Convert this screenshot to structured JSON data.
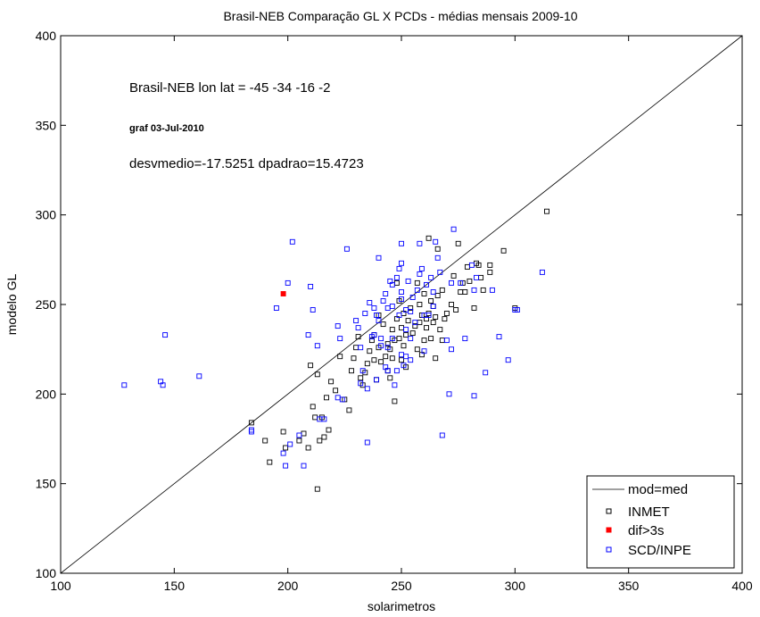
{
  "chart_data": {
    "type": "scatter",
    "title": "Brasil-NEB Comparação GL X PCDs - médias mensais 2009-10",
    "xlabel": "solarimetros",
    "ylabel": "modelo GL",
    "xlim": [
      100,
      400
    ],
    "ylim": [
      100,
      400
    ],
    "x_ticks": [
      "100",
      "150",
      "200",
      "250",
      "300",
      "350",
      "400"
    ],
    "y_ticks": [
      "100",
      "150",
      "200",
      "250",
      "300",
      "350",
      "400"
    ],
    "grid": false,
    "legend_position": "bottom-right",
    "annotations": {
      "line1": "Brasil-NEB lon lat = -45 -34 -16  -2",
      "line2": "graf 03-Jul-2010",
      "line3": "desvmedio=-17.5251 dpadrao=15.4723"
    },
    "reference_line": {
      "name": "mod=med",
      "x": [
        100,
        400
      ],
      "y": [
        100,
        400
      ],
      "color": "#000000"
    },
    "series": [
      {
        "name": "INMET",
        "color": "#000000",
        "marker": "square-open",
        "points": [
          [
            184,
            184
          ],
          [
            190,
            174
          ],
          [
            192,
            162
          ],
          [
            198,
            179
          ],
          [
            199,
            170
          ],
          [
            205,
            174
          ],
          [
            207,
            178
          ],
          [
            209,
            170
          ],
          [
            210,
            216
          ],
          [
            211,
            193
          ],
          [
            212,
            187
          ],
          [
            213,
            211
          ],
          [
            214,
            174
          ],
          [
            213,
            147
          ],
          [
            215,
            187
          ],
          [
            216,
            176
          ],
          [
            217,
            198
          ],
          [
            218,
            180
          ],
          [
            219,
            207
          ],
          [
            221,
            202
          ],
          [
            223,
            221
          ],
          [
            225,
            197
          ],
          [
            227,
            191
          ],
          [
            228,
            213
          ],
          [
            229,
            220
          ],
          [
            230,
            226
          ],
          [
            231,
            232
          ],
          [
            232,
            209
          ],
          [
            233,
            205
          ],
          [
            234,
            212
          ],
          [
            235,
            217
          ],
          [
            236,
            224
          ],
          [
            237,
            230
          ],
          [
            238,
            233
          ],
          [
            238,
            219
          ],
          [
            239,
            208
          ],
          [
            240,
            226
          ],
          [
            240,
            244
          ],
          [
            241,
            218
          ],
          [
            242,
            239
          ],
          [
            243,
            221
          ],
          [
            244,
            228
          ],
          [
            244,
            213
          ],
          [
            245,
            225
          ],
          [
            245,
            209
          ],
          [
            246,
            236
          ],
          [
            246,
            220
          ],
          [
            247,
            196
          ],
          [
            247,
            230
          ],
          [
            248,
            242
          ],
          [
            248,
            262
          ],
          [
            249,
            231
          ],
          [
            249,
            252
          ],
          [
            250,
            237
          ],
          [
            250,
            219
          ],
          [
            251,
            227
          ],
          [
            251,
            245
          ],
          [
            252,
            215
          ],
          [
            252,
            233
          ],
          [
            253,
            241
          ],
          [
            254,
            248
          ],
          [
            255,
            234
          ],
          [
            256,
            238
          ],
          [
            257,
            225
          ],
          [
            257,
            262
          ],
          [
            258,
            240
          ],
          [
            258,
            250
          ],
          [
            259,
            222
          ],
          [
            259,
            244
          ],
          [
            260,
            230
          ],
          [
            260,
            256
          ],
          [
            261,
            237
          ],
          [
            261,
            242
          ],
          [
            262,
            245
          ],
          [
            262,
            287
          ],
          [
            263,
            252
          ],
          [
            263,
            231
          ],
          [
            264,
            249
          ],
          [
            264,
            240
          ],
          [
            265,
            243
          ],
          [
            265,
            220
          ],
          [
            266,
            255
          ],
          [
            266,
            281
          ],
          [
            267,
            236
          ],
          [
            268,
            230
          ],
          [
            268,
            258
          ],
          [
            269,
            242
          ],
          [
            270,
            245
          ],
          [
            272,
            250
          ],
          [
            273,
            266
          ],
          [
            274,
            247
          ],
          [
            275,
            284
          ],
          [
            276,
            257
          ],
          [
            277,
            262
          ],
          [
            278,
            257
          ],
          [
            279,
            271
          ],
          [
            280,
            263
          ],
          [
            282,
            248
          ],
          [
            283,
            273
          ],
          [
            284,
            272
          ],
          [
            285,
            265
          ],
          [
            286,
            258
          ],
          [
            289,
            268
          ],
          [
            289,
            272
          ],
          [
            295,
            280
          ],
          [
            300,
            248
          ],
          [
            314,
            302
          ]
        ]
      },
      {
        "name": "dif>3s",
        "color": "#ff0000",
        "marker": "square-filled",
        "points": [
          [
            198,
            256
          ]
        ]
      },
      {
        "name": "SCD/INPE",
        "color": "#0000ff",
        "marker": "square-open",
        "points": [
          [
            128,
            205
          ],
          [
            144,
            207
          ],
          [
            145,
            205
          ],
          [
            146,
            233
          ],
          [
            161,
            210
          ],
          [
            184,
            180
          ],
          [
            184,
            179
          ],
          [
            195,
            248
          ],
          [
            198,
            167
          ],
          [
            199,
            160
          ],
          [
            200,
            262
          ],
          [
            201,
            172
          ],
          [
            202,
            285
          ],
          [
            205,
            177
          ],
          [
            207,
            160
          ],
          [
            209,
            233
          ],
          [
            210,
            260
          ],
          [
            211,
            247
          ],
          [
            213,
            227
          ],
          [
            214,
            186
          ],
          [
            216,
            186
          ],
          [
            222,
            198
          ],
          [
            222,
            238
          ],
          [
            223,
            231
          ],
          [
            224,
            197
          ],
          [
            226,
            281
          ],
          [
            230,
            241
          ],
          [
            231,
            237
          ],
          [
            232,
            206
          ],
          [
            232,
            226
          ],
          [
            233,
            213
          ],
          [
            234,
            245
          ],
          [
            235,
            173
          ],
          [
            235,
            203
          ],
          [
            236,
            251
          ],
          [
            237,
            232
          ],
          [
            238,
            233
          ],
          [
            238,
            248
          ],
          [
            239,
            208
          ],
          [
            239,
            244
          ],
          [
            240,
            276
          ],
          [
            240,
            241
          ],
          [
            241,
            227
          ],
          [
            241,
            231
          ],
          [
            242,
            252
          ],
          [
            243,
            256
          ],
          [
            243,
            215
          ],
          [
            244,
            226
          ],
          [
            244,
            213
          ],
          [
            244,
            248
          ],
          [
            245,
            263
          ],
          [
            246,
            261
          ],
          [
            246,
            249
          ],
          [
            246,
            231
          ],
          [
            247,
            205
          ],
          [
            248,
            265
          ],
          [
            248,
            213
          ],
          [
            249,
            244
          ],
          [
            249,
            270
          ],
          [
            250,
            273
          ],
          [
            250,
            222
          ],
          [
            250,
            284
          ],
          [
            250,
            253
          ],
          [
            250,
            257
          ],
          [
            251,
            216
          ],
          [
            252,
            247
          ],
          [
            252,
            236
          ],
          [
            252,
            221
          ],
          [
            253,
            263
          ],
          [
            254,
            246
          ],
          [
            254,
            231
          ],
          [
            254,
            219
          ],
          [
            255,
            254
          ],
          [
            256,
            240
          ],
          [
            257,
            258
          ],
          [
            258,
            284
          ],
          [
            258,
            267
          ],
          [
            259,
            270
          ],
          [
            260,
            244
          ],
          [
            260,
            224
          ],
          [
            261,
            261
          ],
          [
            262,
            244
          ],
          [
            263,
            265
          ],
          [
            264,
            257
          ],
          [
            264,
            249
          ],
          [
            265,
            285
          ],
          [
            266,
            276
          ],
          [
            267,
            268
          ],
          [
            268,
            177
          ],
          [
            270,
            230
          ],
          [
            271,
            200
          ],
          [
            272,
            262
          ],
          [
            272,
            225
          ],
          [
            273,
            292
          ],
          [
            276,
            262
          ],
          [
            278,
            231
          ],
          [
            281,
            272
          ],
          [
            282,
            258
          ],
          [
            282,
            199
          ],
          [
            283,
            265
          ],
          [
            287,
            212
          ],
          [
            290,
            258
          ],
          [
            293,
            232
          ],
          [
            297,
            219
          ],
          [
            300,
            247
          ],
          [
            301,
            247
          ],
          [
            312,
            268
          ]
        ]
      }
    ]
  }
}
